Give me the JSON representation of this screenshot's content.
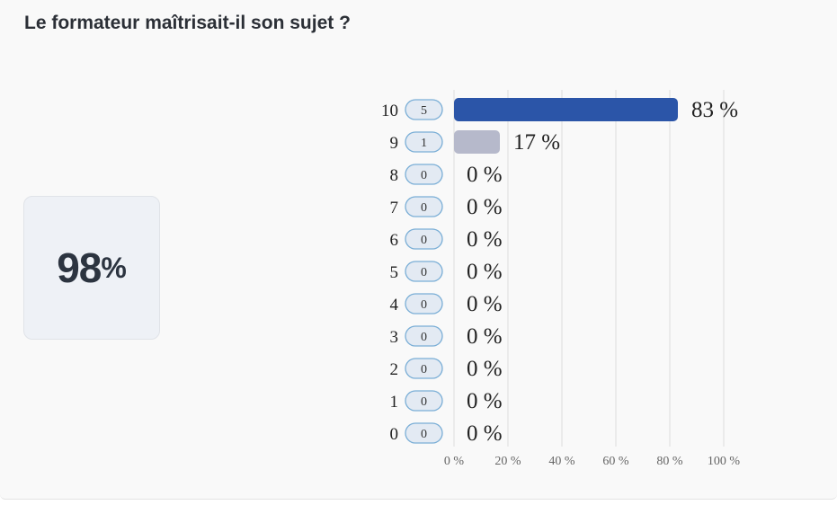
{
  "question": "Le formateur maîtrisait-il son sujet ?",
  "score": {
    "value": "98",
    "unit": "%"
  },
  "colors": {
    "primary_bar": "#2b55a8",
    "secondary_bar": "#b6b9cb",
    "pill_border": "#7aaed6",
    "grid": "#dddddd"
  },
  "chart_data": {
    "type": "bar",
    "orientation": "horizontal",
    "title": "",
    "xlabel": "",
    "ylabel": "",
    "xlim": [
      0,
      100
    ],
    "grid": true,
    "x_ticks": [
      "0 %",
      "20 %",
      "40 %",
      "60 %",
      "80 %",
      "100 %"
    ],
    "x_tick_values": [
      0,
      20,
      40,
      60,
      80,
      100
    ],
    "categories": [
      "10",
      "9",
      "8",
      "7",
      "6",
      "5",
      "4",
      "3",
      "2",
      "1",
      "0"
    ],
    "counts": [
      "5",
      "1",
      "0",
      "0",
      "0",
      "0",
      "0",
      "0",
      "0",
      "0",
      "0"
    ],
    "values": [
      83,
      17,
      0,
      0,
      0,
      0,
      0,
      0,
      0,
      0,
      0
    ],
    "value_labels": [
      "83 %",
      "17 %",
      "0 %",
      "0 %",
      "0 %",
      "0 %",
      "0 %",
      "0 %",
      "0 %",
      "0 %",
      "0 %"
    ]
  }
}
